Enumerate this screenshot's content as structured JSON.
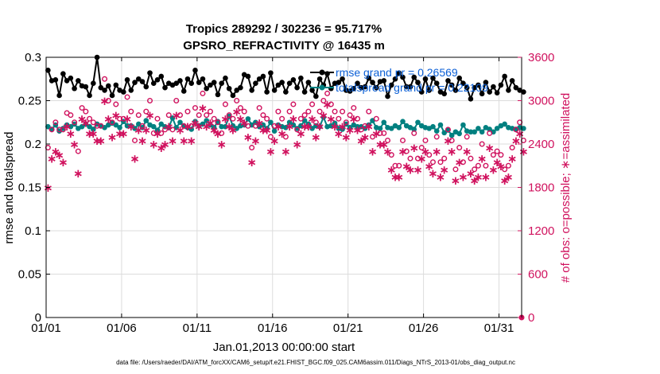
{
  "colors": {
    "rmse": "#000000",
    "spread": "#008080",
    "obs": "#d0125e",
    "legend_text": "#0b5fd6",
    "grid": "#dcdcdc"
  },
  "footer": "data file: /Users/raeder/DAI/ATM_forcXX/CAM6_setup/f.e21.FHIST_BGC.f09_025.CAM6assim.011/Diags_NTrS_2013-01/obs_diag_output.nc",
  "chart_data": {
    "type": "line",
    "title": "Tropics 289292 / 302236 = 95.717%",
    "subtitle": "GPSRO_REFRACTIVITY @ 16435 m",
    "xlabel": "Jan.01,2013 00:00:00 start",
    "ylabel": "rmse and totalspread",
    "y2label": "# of obs: o=possible; ∗=assimilated",
    "xlim": [
      0,
      31.5
    ],
    "ylim": [
      0,
      0.3
    ],
    "y2lim": [
      0,
      3600
    ],
    "xticks": [
      0,
      5,
      10,
      15,
      20,
      25,
      30
    ],
    "xticklabels": [
      "01/01",
      "01/06",
      "01/11",
      "01/16",
      "01/21",
      "01/26",
      "01/31"
    ],
    "yticks": [
      0,
      0.05,
      0.1,
      0.15,
      0.2,
      0.25,
      0.3
    ],
    "yticklabels": [
      "0",
      "0.05",
      "0.1",
      "0.15",
      "0.2",
      "0.25",
      "0.3"
    ],
    "y2ticks": [
      0,
      600,
      1200,
      1800,
      2400,
      3000,
      3600
    ],
    "y2ticklabels": [
      "0",
      "600",
      "1200",
      "1800",
      "2400",
      "3000",
      "3600"
    ],
    "grid": true,
    "legend": {
      "location": "top-right",
      "entries": [
        "rmse grand pr = 0.26569",
        "totalspread grand pr = 0.22109"
      ]
    },
    "points_per_day": 4,
    "series": [
      {
        "name": "rmse",
        "axis": "left",
        "values": [
          0.285,
          0.273,
          0.274,
          0.256,
          0.281,
          0.273,
          0.276,
          0.264,
          0.273,
          0.267,
          0.266,
          0.256,
          0.27,
          0.3,
          0.265,
          0.262,
          0.267,
          0.256,
          0.268,
          0.262,
          0.26,
          0.274,
          0.262,
          0.271,
          0.275,
          0.272,
          0.266,
          0.282,
          0.27,
          0.274,
          0.278,
          0.265,
          0.27,
          0.268,
          0.27,
          0.273,
          0.261,
          0.275,
          0.27,
          0.285,
          0.271,
          0.275,
          0.264,
          0.268,
          0.271,
          0.257,
          0.27,
          0.276,
          0.264,
          0.256,
          0.262,
          0.265,
          0.28,
          0.278,
          0.262,
          0.27,
          0.275,
          0.278,
          0.26,
          0.282,
          0.262,
          0.268,
          0.271,
          0.26,
          0.27,
          0.274,
          0.265,
          0.276,
          0.26,
          0.271,
          0.262,
          0.255,
          0.275,
          0.268,
          0.281,
          0.264,
          0.27,
          0.271,
          0.275,
          0.262,
          0.261,
          0.264,
          0.27,
          0.265,
          0.266,
          0.276,
          0.271,
          0.265,
          0.272,
          0.273,
          0.255,
          0.268,
          0.275,
          0.282,
          0.277,
          0.266,
          0.266,
          0.277,
          0.271,
          0.26,
          0.275,
          0.262,
          0.276,
          0.27,
          0.26,
          0.258,
          0.273,
          0.268,
          0.262,
          0.276,
          0.27,
          0.265,
          0.252,
          0.265,
          0.268,
          0.258,
          0.271,
          0.26,
          0.266,
          0.259,
          0.268,
          0.278,
          0.262,
          0.273,
          0.265,
          0.262,
          0.26
        ],
        "color": "#000000"
      },
      {
        "name": "totalspread",
        "axis": "left",
        "values": [
          0.22,
          0.217,
          0.222,
          0.215,
          0.218,
          0.222,
          0.22,
          0.223,
          0.218,
          0.22,
          0.223,
          0.22,
          0.217,
          0.223,
          0.221,
          0.219,
          0.222,
          0.224,
          0.222,
          0.219,
          0.226,
          0.221,
          0.221,
          0.218,
          0.223,
          0.219,
          0.227,
          0.222,
          0.22,
          0.216,
          0.223,
          0.22,
          0.219,
          0.23,
          0.219,
          0.225,
          0.221,
          0.219,
          0.217,
          0.226,
          0.221,
          0.223,
          0.227,
          0.222,
          0.219,
          0.226,
          0.22,
          0.22,
          0.232,
          0.221,
          0.218,
          0.221,
          0.222,
          0.229,
          0.222,
          0.225,
          0.22,
          0.222,
          0.218,
          0.225,
          0.215,
          0.222,
          0.22,
          0.219,
          0.225,
          0.222,
          0.218,
          0.221,
          0.227,
          0.223,
          0.218,
          0.221,
          0.22,
          0.231,
          0.22,
          0.221,
          0.224,
          0.218,
          0.217,
          0.223,
          0.219,
          0.222,
          0.22,
          0.22,
          0.218,
          0.222,
          0.227,
          0.219,
          0.218,
          0.225,
          0.219,
          0.218,
          0.221,
          0.219,
          0.226,
          0.221,
          0.219,
          0.217,
          0.225,
          0.221,
          0.219,
          0.218,
          0.22,
          0.215,
          0.222,
          0.213,
          0.216,
          0.21,
          0.214,
          0.212,
          0.222,
          0.215,
          0.214,
          0.214,
          0.218,
          0.214,
          0.219,
          0.217,
          0.214,
          0.218,
          0.221,
          0.223,
          0.219,
          0.218,
          0.217,
          0.219,
          0.218
        ],
        "color": "#008080"
      },
      {
        "name": "obs possible",
        "axis": "right",
        "marker": "o",
        "values": [
          2350,
          2600,
          2700,
          2600,
          2600,
          2830,
          2800,
          2700,
          2300,
          2900,
          2850,
          2750,
          2700,
          2650,
          2650,
          3300,
          3000,
          2700,
          2950,
          2750,
          2750,
          3050,
          2850,
          2450,
          2800,
          2650,
          2850,
          3000,
          2550,
          2750,
          2550,
          2600,
          2800,
          2600,
          3000,
          2800,
          2650,
          2850,
          2650,
          2900,
          2800,
          3100,
          2800,
          2850,
          2750,
          2700,
          2550,
          2950,
          2800,
          2750,
          3000,
          2900,
          2850,
          2650,
          2350,
          2650,
          2900,
          2800,
          2750,
          2500,
          2650,
          2850,
          2750,
          2500,
          2850,
          2950,
          2600,
          2750,
          2800,
          2850,
          2950,
          2700,
          2850,
          3000,
          3100,
          2950,
          2850,
          2750,
          2850,
          2700,
          2800,
          2900,
          2750,
          2600,
          2650,
          2850,
          2500,
          2750,
          2550,
          2550,
          2450,
          2250,
          2100,
          2100,
          2450,
          2300,
          2200,
          2550,
          2200,
          2350,
          2450,
          2250,
          2150,
          2500,
          2150,
          2200,
          2600,
          2450,
          2050,
          2350,
          2150,
          2500,
          2200,
          2050,
          2100,
          2400,
          2100,
          2550,
          2250,
          2300,
          2250,
          2050,
          2100,
          2350,
          2600,
          2700,
          2450
        ],
        "color": "#d0125e"
      },
      {
        "name": "obs assimilated",
        "axis": "right",
        "marker": "*",
        "values": [
          1800,
          2200,
          2300,
          2250,
          2150,
          2650,
          2550,
          2400,
          2000,
          2750,
          2700,
          2550,
          2550,
          2450,
          2450,
          3000,
          2750,
          2500,
          2800,
          2550,
          2550,
          2750,
          2650,
          2200,
          2600,
          2450,
          2600,
          2800,
          2400,
          2550,
          2350,
          2400,
          2650,
          2450,
          2800,
          2600,
          2450,
          2650,
          2450,
          2700,
          2650,
          2900,
          2650,
          2700,
          2600,
          2550,
          2400,
          2750,
          2650,
          2600,
          2850,
          2750,
          2700,
          2500,
          2150,
          2450,
          2700,
          2600,
          2600,
          2300,
          2450,
          2650,
          2550,
          2300,
          2650,
          2750,
          2400,
          2550,
          2650,
          2650,
          2750,
          2500,
          2650,
          2800,
          2950,
          2750,
          2650,
          2550,
          2650,
          2500,
          2600,
          2750,
          2600,
          2450,
          2500,
          2650,
          2300,
          2550,
          2400,
          2400,
          2300,
          2050,
          1950,
          1950,
          2300,
          2100,
          2050,
          2350,
          2050,
          2200,
          2300,
          2100,
          2000,
          2300,
          1950,
          2050,
          2450,
          2300,
          1900,
          2150,
          1950,
          2300,
          2000,
          1900,
          1950,
          2200,
          1950,
          2350,
          2050,
          2150,
          2100,
          1900,
          1950,
          2200,
          2450,
          2550,
          2300
        ],
        "color": "#d0125e"
      }
    ]
  }
}
